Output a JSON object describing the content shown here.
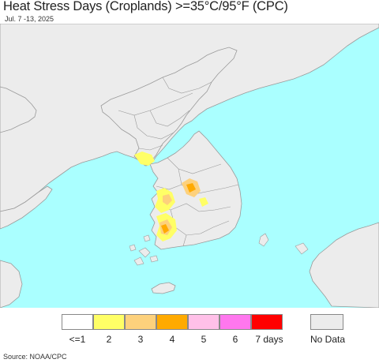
{
  "header": {
    "title": "Heat Stress Days (Croplands) >=35°C/95°F (CPC)",
    "subtitle": "Jul. 7 -13, 2025"
  },
  "colors": {
    "ocean": "#aaffff",
    "land": "#ececec",
    "border": "#9a9a9a",
    "heat_1": "#ffff66",
    "heat_2": "#fdd17c",
    "heat_3": "#ffaa00"
  },
  "legend": {
    "items": [
      {
        "label": "<=1",
        "color": "#ffffff"
      },
      {
        "label": "2",
        "color": "#ffff66"
      },
      {
        "label": "3",
        "color": "#fdd17c"
      },
      {
        "label": "4",
        "color": "#ffaa00"
      },
      {
        "label": "5",
        "color": "#ffc0e8"
      },
      {
        "label": "6",
        "color": "#ff77ee"
      },
      {
        "label": "7 days",
        "color": "#ff0000"
      }
    ],
    "no_data": {
      "label": "No Data",
      "color": "#ececec"
    }
  },
  "footer": {
    "source": "Source: NOAA/CPC"
  }
}
